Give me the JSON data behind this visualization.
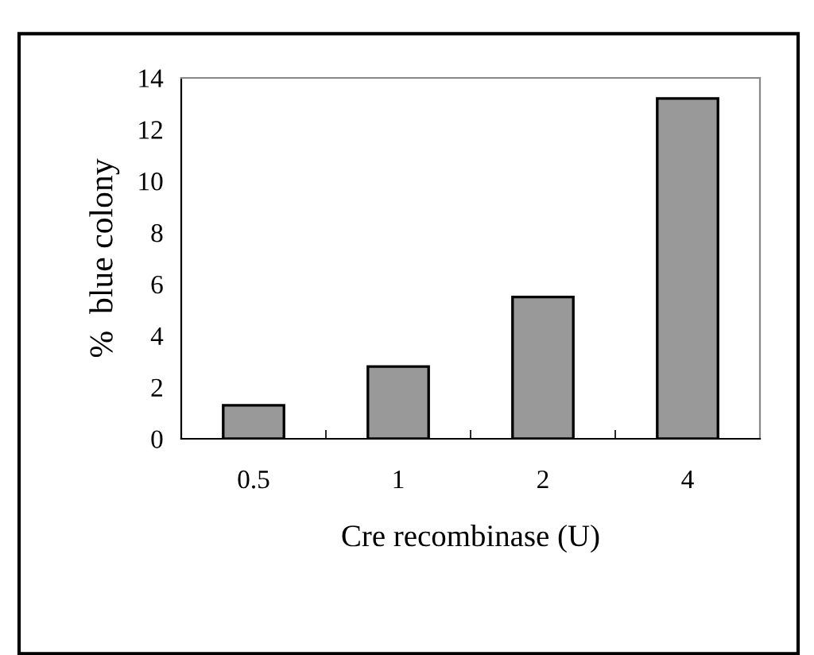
{
  "chart_data": {
    "type": "bar",
    "xlabel": "Cre recombinase (U)",
    "ylabel": "%  blue colony",
    "categories": [
      "0.5",
      "1",
      "2",
      "4"
    ],
    "series": [
      {
        "color": "#999999",
        "values": [
          1.3,
          2.8,
          5.5,
          13.2
        ]
      }
    ],
    "ylim": [
      0,
      14
    ],
    "yticks": [
      0,
      2,
      4,
      6,
      8,
      10,
      12,
      14
    ],
    "grid": false,
    "legend": false
  }
}
